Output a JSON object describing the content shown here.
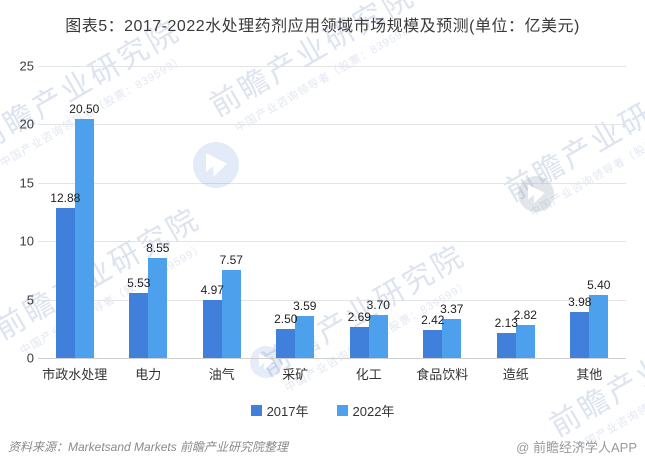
{
  "title": "图表5：2017-2022水处理药剂应用领域市场规模及预测(单位：亿美元)",
  "chart_data": {
    "type": "bar",
    "categories": [
      "市政水处理",
      "电力",
      "油气",
      "采矿",
      "化工",
      "食品饮料",
      "造纸",
      "其他"
    ],
    "series": [
      {
        "name": "2017年",
        "color": "#4080DB",
        "values": [
          12.88,
          5.53,
          4.97,
          2.5,
          2.69,
          2.42,
          2.13,
          3.98
        ]
      },
      {
        "name": "2022年",
        "color": "#4DA0EB",
        "values": [
          20.5,
          8.55,
          7.57,
          3.59,
          3.7,
          3.37,
          2.82,
          5.4
        ]
      }
    ],
    "title": "图表5：2017-2022水处理药剂应用领域市场规模及预测(单位：亿美元)",
    "xlabel": "",
    "ylabel": "",
    "ylim": [
      0,
      25
    ],
    "yticks": [
      0,
      5,
      10,
      15,
      20,
      25
    ],
    "grid": true,
    "legend_position": "bottom",
    "value_label_decimals": 2
  },
  "legend": {
    "items": [
      "2017年",
      "2022年"
    ]
  },
  "footer": {
    "source": "资料来源：Marketsand Markets 前瞻产业研究院整理",
    "brand": "@ 前瞻经济学人APP"
  },
  "watermark": {
    "text": "前瞻产业研究院",
    "subtext": "中国产业咨询领导者（股票：839599）"
  },
  "colors": {
    "series_2017": "#4080DB",
    "series_2022": "#4DA0EB",
    "grid": "#E4E4E4",
    "axis": "#CFCFCF",
    "title_text": "#3A3A3A",
    "label_text": "#1F1F1F",
    "footer_text": "#8A8A8A",
    "watermark_text": "#DDE3EF"
  }
}
